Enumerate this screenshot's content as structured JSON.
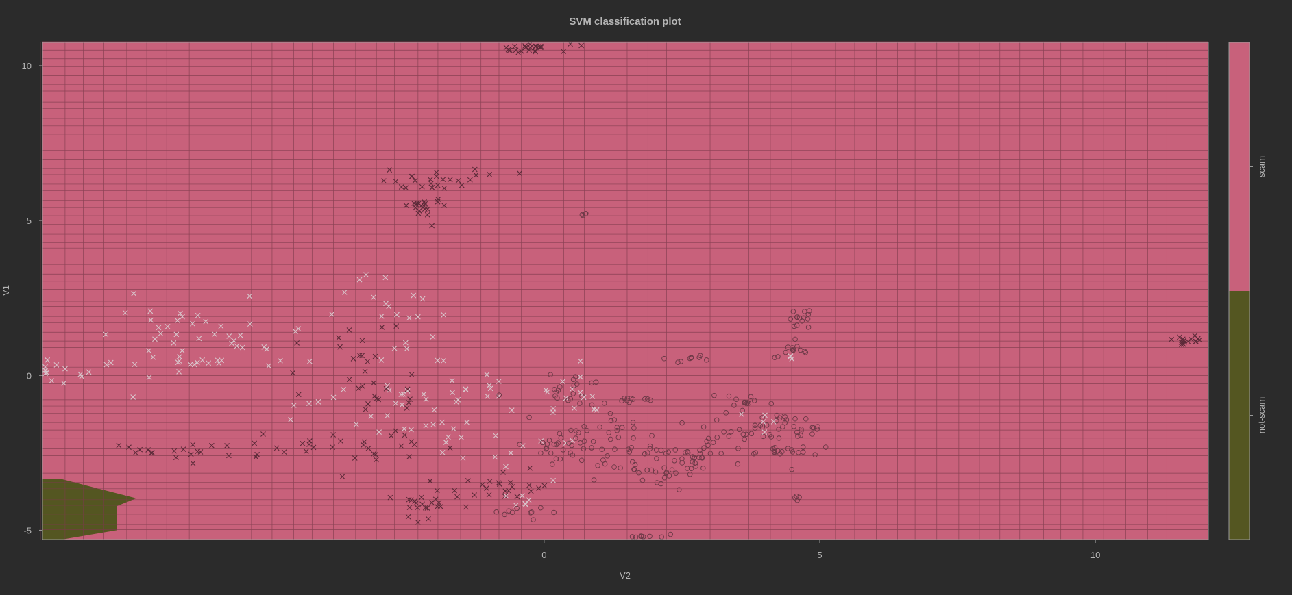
{
  "chart_data": {
    "type": "scatter",
    "title": "SVM classification plot",
    "xlabel": "V2",
    "ylabel": "V1",
    "xlim": [
      -9.1,
      12.05
    ],
    "ylim": [
      -5.3,
      10.75
    ],
    "x_ticks": [
      0,
      5,
      10
    ],
    "y_ticks": [
      -5,
      0,
      5,
      10
    ],
    "grid": true,
    "legend": "colorbar-right",
    "classes": [
      {
        "label": "scam",
        "color": "#c8617b"
      },
      {
        "label": "not-scam",
        "color": "#545621"
      }
    ],
    "colors": {
      "background": "#2b2b2b",
      "text": "#b5b5b5",
      "grid": "#7a3a4a",
      "point_x_light": "#d8c6cc",
      "point_x_dark": "#5a2a38",
      "point_o": "#6e3a48"
    },
    "decision_region_not_scam": [
      [
        -9.1,
        -3.35
      ],
      [
        -8.75,
        -3.35
      ],
      [
        -7.4,
        -3.97
      ],
      [
        -7.75,
        -4.22
      ],
      [
        -7.75,
        -5.0
      ],
      [
        -8.75,
        -5.3
      ],
      [
        -9.1,
        -5.3
      ]
    ],
    "clusters": [
      {
        "marker": "x",
        "shade": "dark",
        "cx": -0.2,
        "cy": 10.55,
        "sx": 0.3,
        "sy": 0.12,
        "n": 22
      },
      {
        "marker": "x",
        "shade": "dark",
        "cx": -2.1,
        "cy": 6.3,
        "sx": 0.5,
        "sy": 0.2,
        "n": 24
      },
      {
        "marker": "x",
        "shade": "dark",
        "cx": -2.2,
        "cy": 5.4,
        "sx": 0.2,
        "sy": 0.3,
        "n": 20
      },
      {
        "marker": "o",
        "shade": "dark",
        "cx": 0.75,
        "cy": 5.18,
        "sx": 0.04,
        "sy": 0.02,
        "n": 4
      },
      {
        "marker": "x",
        "shade": "light",
        "cx": -6.3,
        "cy": 1.1,
        "sx": 1.0,
        "sy": 0.8,
        "n": 55
      },
      {
        "marker": "x",
        "shade": "light",
        "cx": -2.9,
        "cy": 2.1,
        "sx": 0.6,
        "sy": 0.8,
        "n": 20
      },
      {
        "marker": "x",
        "shade": "dark",
        "cx": -3.3,
        "cy": 0.9,
        "sx": 0.5,
        "sy": 0.4,
        "n": 12
      },
      {
        "marker": "x",
        "shade": "light",
        "cx": -8.8,
        "cy": 0.2,
        "sx": 0.3,
        "sy": 0.2,
        "n": 12
      },
      {
        "marker": "x",
        "shade": "light",
        "cx": -1.3,
        "cy": -0.4,
        "sx": 0.8,
        "sy": 0.5,
        "n": 20
      },
      {
        "marker": "x",
        "shade": "light",
        "cx": -2.2,
        "cy": -1.1,
        "sx": 1.0,
        "sy": 0.5,
        "n": 25
      },
      {
        "marker": "x",
        "shade": "dark",
        "cx": -3.2,
        "cy": -0.6,
        "sx": 0.6,
        "sy": 0.4,
        "n": 18
      },
      {
        "marker": "x",
        "shade": "dark",
        "cx": -3.6,
        "cy": -2.2,
        "sx": 1.0,
        "sy": 0.25,
        "n": 30
      },
      {
        "marker": "x",
        "shade": "dark",
        "cx": -6.6,
        "cy": -2.45,
        "sx": 0.7,
        "sy": 0.2,
        "n": 18
      },
      {
        "marker": "x",
        "shade": "dark",
        "cx": -2.1,
        "cy": -4.2,
        "sx": 0.3,
        "sy": 0.25,
        "n": 22
      },
      {
        "marker": "x",
        "shade": "dark",
        "cx": -0.9,
        "cy": -3.6,
        "sx": 0.4,
        "sy": 0.35,
        "n": 22
      },
      {
        "marker": "x",
        "shade": "light",
        "cx": -1.3,
        "cy": -2.2,
        "sx": 0.9,
        "sy": 0.5,
        "n": 14
      },
      {
        "marker": "x",
        "shade": "light",
        "cx": -0.4,
        "cy": -4.1,
        "sx": 0.2,
        "sy": 0.15,
        "n": 6
      },
      {
        "marker": "o",
        "shade": "dark",
        "cx": -0.3,
        "cy": -4.4,
        "sx": 0.3,
        "sy": 0.15,
        "n": 10
      },
      {
        "marker": "o",
        "shade": "dark",
        "cx": 0.4,
        "cy": -0.5,
        "sx": 0.3,
        "sy": 0.4,
        "n": 20
      },
      {
        "marker": "o",
        "shade": "dark",
        "cx": 0.3,
        "cy": -2.3,
        "sx": 0.4,
        "sy": 0.25,
        "n": 24
      },
      {
        "marker": "o",
        "shade": "dark",
        "cx": 1.0,
        "cy": -1.7,
        "sx": 0.4,
        "sy": 0.4,
        "n": 24
      },
      {
        "marker": "o",
        "shade": "dark",
        "cx": 1.5,
        "cy": -2.5,
        "sx": 0.6,
        "sy": 0.3,
        "n": 22
      },
      {
        "marker": "x",
        "shade": "light",
        "cx": 0.4,
        "cy": -0.6,
        "sx": 0.4,
        "sy": 0.35,
        "n": 12
      },
      {
        "marker": "o",
        "shade": "dark",
        "cx": 1.6,
        "cy": -0.8,
        "sx": 0.25,
        "sy": 0.05,
        "n": 10
      },
      {
        "marker": "o",
        "shade": "dark",
        "cx": 2.1,
        "cy": -3.2,
        "sx": 0.5,
        "sy": 0.2,
        "n": 26
      },
      {
        "marker": "o",
        "shade": "dark",
        "cx": 2.7,
        "cy": -2.6,
        "sx": 0.3,
        "sy": 0.15,
        "n": 16
      },
      {
        "marker": "o",
        "shade": "dark",
        "cx": 2.0,
        "cy": -5.2,
        "sx": 0.25,
        "sy": 0.03,
        "n": 8
      },
      {
        "marker": "o",
        "shade": "dark",
        "cx": 2.7,
        "cy": 0.55,
        "sx": 0.2,
        "sy": 0.08,
        "n": 9
      },
      {
        "marker": "o",
        "shade": "dark",
        "cx": 3.5,
        "cy": -1.8,
        "sx": 0.5,
        "sy": 0.5,
        "n": 40
      },
      {
        "marker": "o",
        "shade": "dark",
        "cx": 3.7,
        "cy": -0.85,
        "sx": 0.12,
        "sy": 0.06,
        "n": 9
      },
      {
        "marker": "x",
        "shade": "light",
        "cx": 3.8,
        "cy": -1.5,
        "sx": 0.35,
        "sy": 0.2,
        "n": 5
      },
      {
        "marker": "o",
        "shade": "dark",
        "cx": 4.4,
        "cy": -2.4,
        "sx": 0.25,
        "sy": 0.08,
        "n": 16
      },
      {
        "marker": "o",
        "shade": "dark",
        "cx": 4.7,
        "cy": -1.8,
        "sx": 0.2,
        "sy": 0.1,
        "n": 12
      },
      {
        "marker": "o",
        "shade": "dark",
        "cx": 4.4,
        "cy": -1.3,
        "sx": 0.2,
        "sy": 0.15,
        "n": 10
      },
      {
        "marker": "o",
        "shade": "dark",
        "cx": 4.2,
        "cy": 0.6,
        "sx": 0.1,
        "sy": 0.02,
        "n": 2
      },
      {
        "marker": "o",
        "shade": "dark",
        "cx": 4.75,
        "cy": 1.8,
        "sx": 0.12,
        "sy": 0.2,
        "n": 14
      },
      {
        "marker": "o",
        "shade": "dark",
        "cx": 4.55,
        "cy": 0.85,
        "sx": 0.08,
        "sy": 0.12,
        "n": 10
      },
      {
        "marker": "x",
        "shade": "light",
        "cx": 4.5,
        "cy": 0.5,
        "sx": 0.05,
        "sy": 0.15,
        "n": 3
      },
      {
        "marker": "o",
        "shade": "dark",
        "cx": 4.6,
        "cy": -4.0,
        "sx": 0.08,
        "sy": 0.05,
        "n": 4
      },
      {
        "marker": "x",
        "shade": "dark",
        "cx": 11.7,
        "cy": 1.12,
        "sx": 0.15,
        "sy": 0.08,
        "n": 16
      }
    ]
  }
}
